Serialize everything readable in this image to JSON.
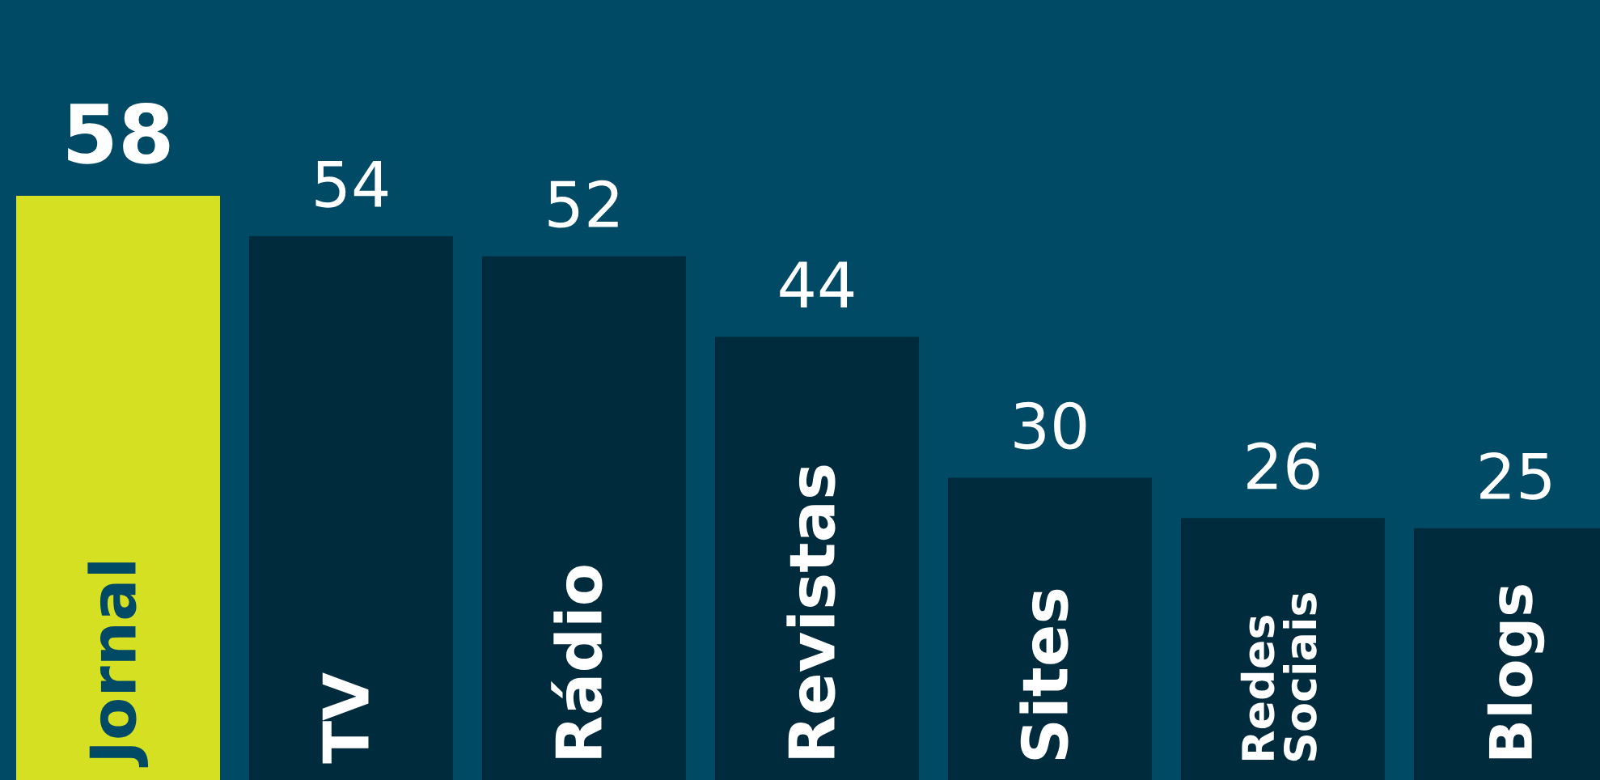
{
  "chart_data": {
    "type": "bar",
    "categories": [
      "Jornal",
      "TV",
      "Rádio",
      "Revistas",
      "Sites",
      "Redes\nSociais",
      "Blogs"
    ],
    "values": [
      58,
      54,
      52,
      44,
      30,
      26,
      25
    ],
    "colors": [
      "#d4e021",
      "#002b3d",
      "#002b3d",
      "#002b3d",
      "#002b3d",
      "#002b3d",
      "#002b3d"
    ],
    "data_labels": true
  }
}
